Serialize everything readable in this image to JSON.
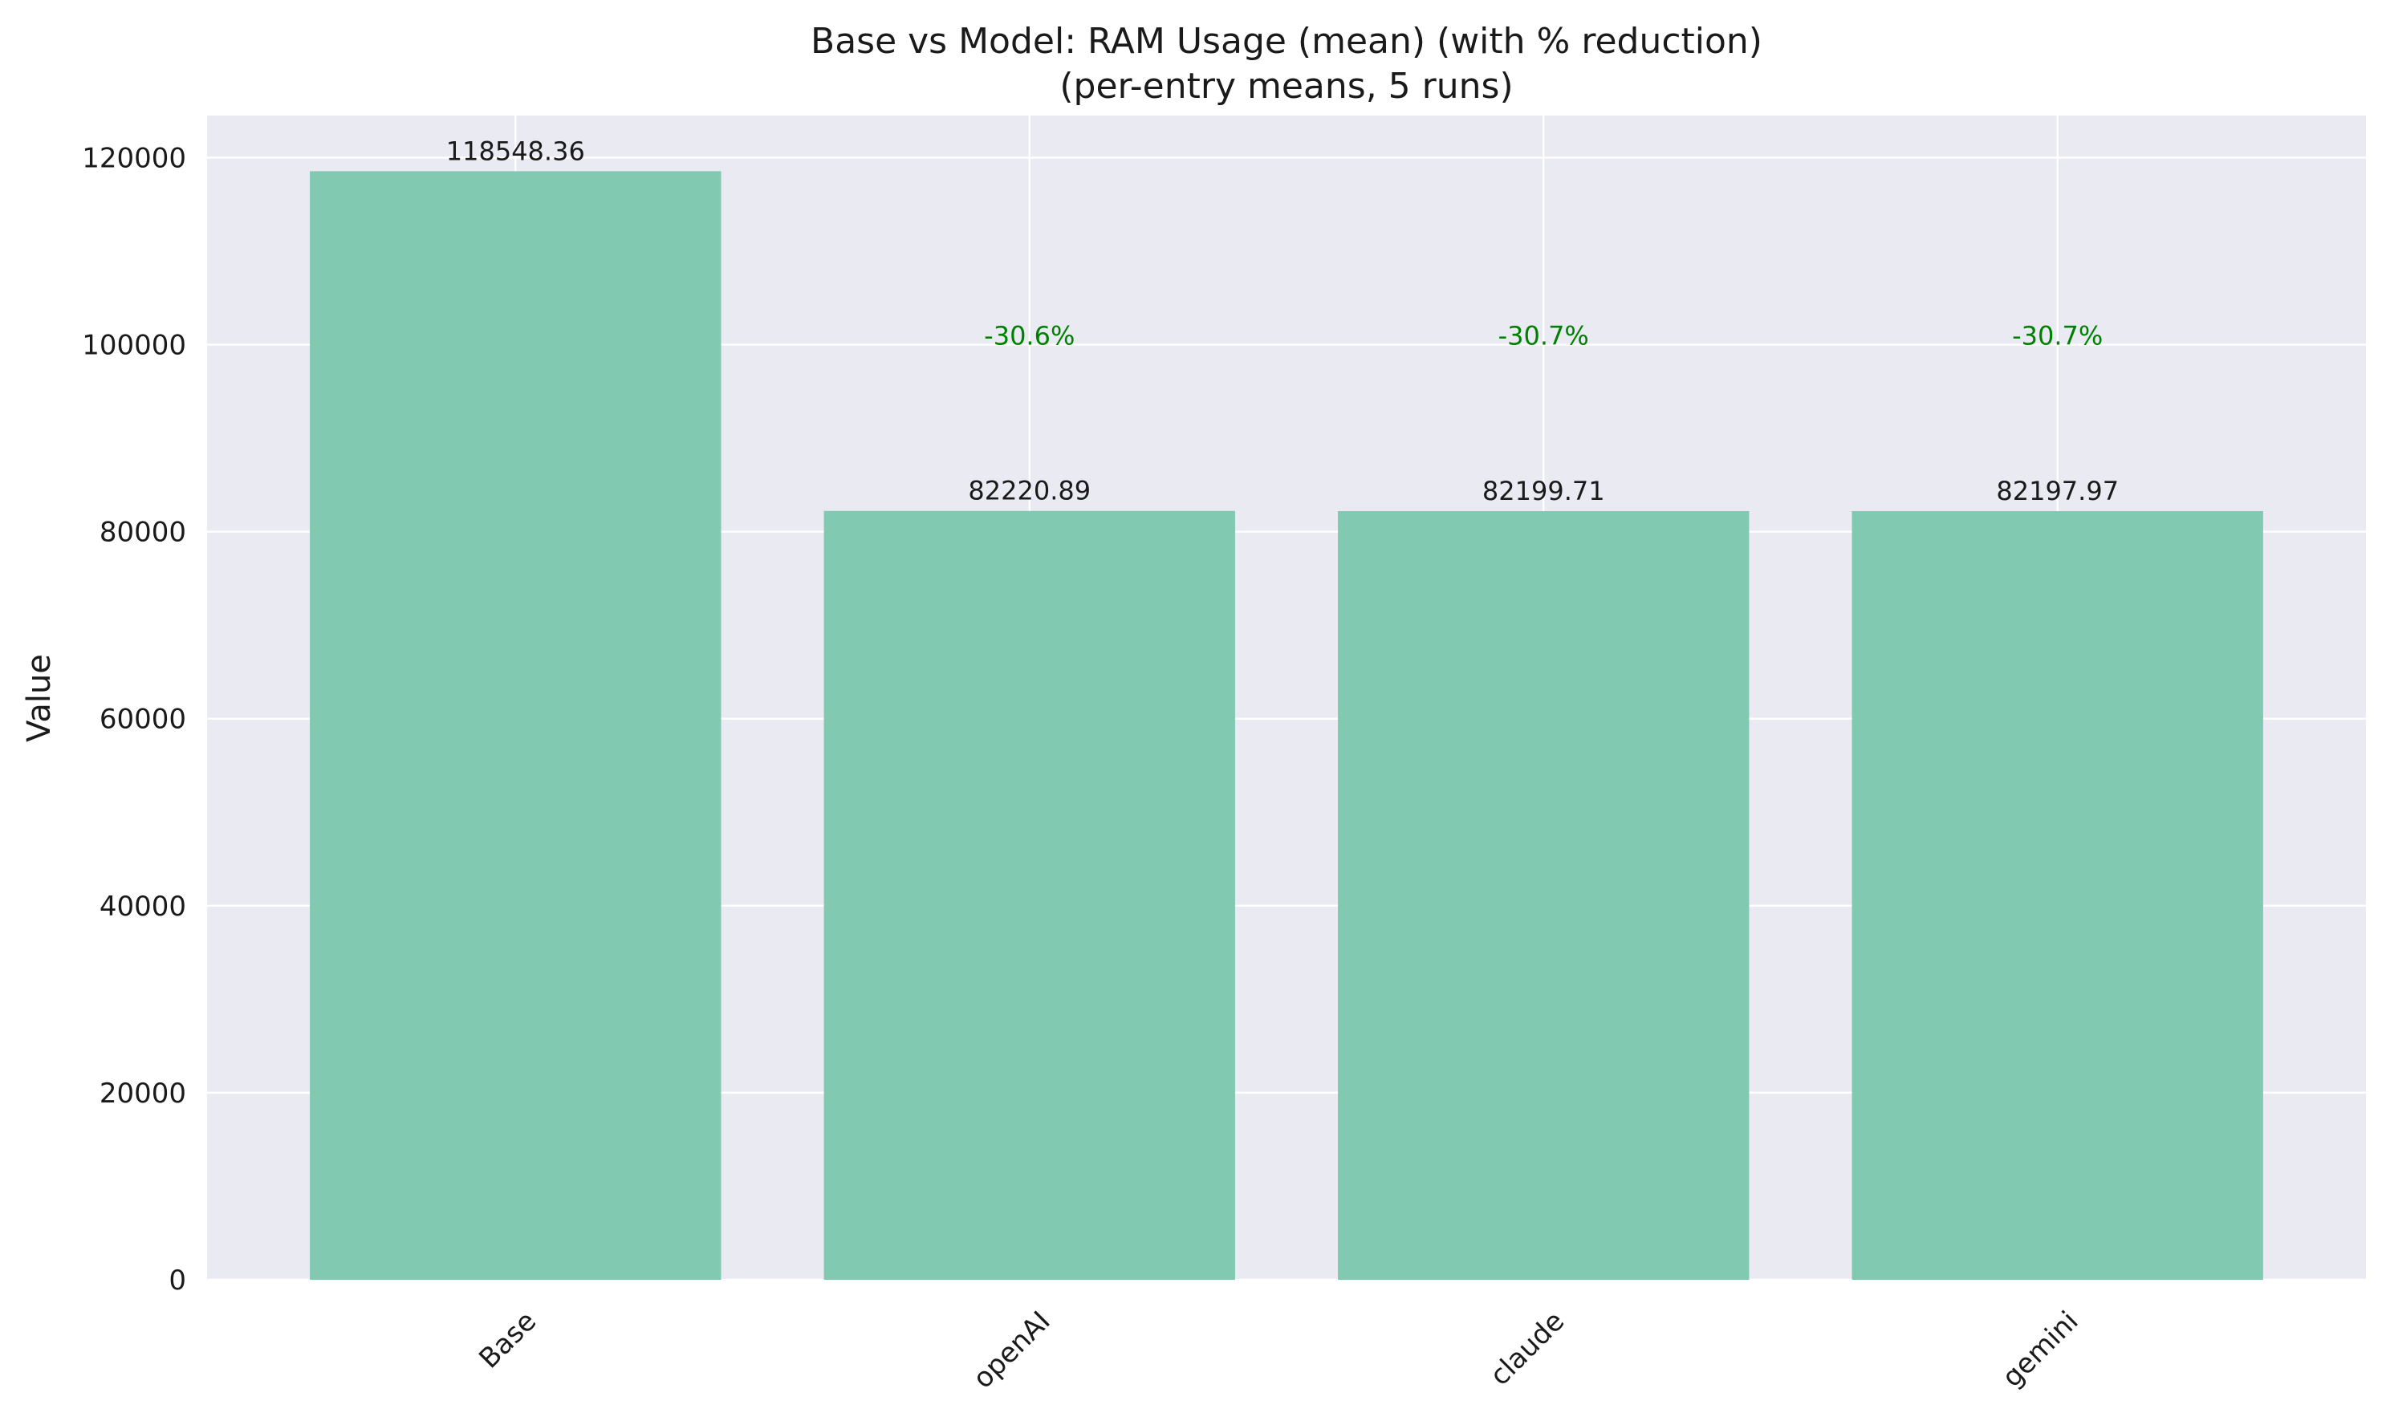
{
  "chart_data": {
    "type": "bar",
    "title": "Base vs Model: RAM Usage (mean) (with % reduction)",
    "subtitle": "(per-entry means, 5 runs)",
    "xlabel": "",
    "ylabel": "Value",
    "categories": [
      "Base",
      "openAI",
      "claude",
      "gemini"
    ],
    "values": [
      118548.36,
      82220.89,
      82199.71,
      82197.97
    ],
    "value_labels": [
      "118548.36",
      "82220.89",
      "82199.71",
      "82197.97"
    ],
    "reduction_labels": [
      "",
      "-30.6%",
      "-30.7%",
      "-30.7%"
    ],
    "ylim": [
      0,
      124500
    ],
    "yticks": [
      0,
      20000,
      40000,
      60000,
      80000,
      100000,
      120000
    ],
    "ytick_labels": [
      "0",
      "20000",
      "40000",
      "60000",
      "80000",
      "100000",
      "120000"
    ],
    "grid": true,
    "legend": "none",
    "x_tick_rotation": 45,
    "colors": {
      "bar": "#82c9b2",
      "plot_background": "#eaeaf2",
      "grid": "#ffffff",
      "reduction_text": "#008000"
    }
  }
}
